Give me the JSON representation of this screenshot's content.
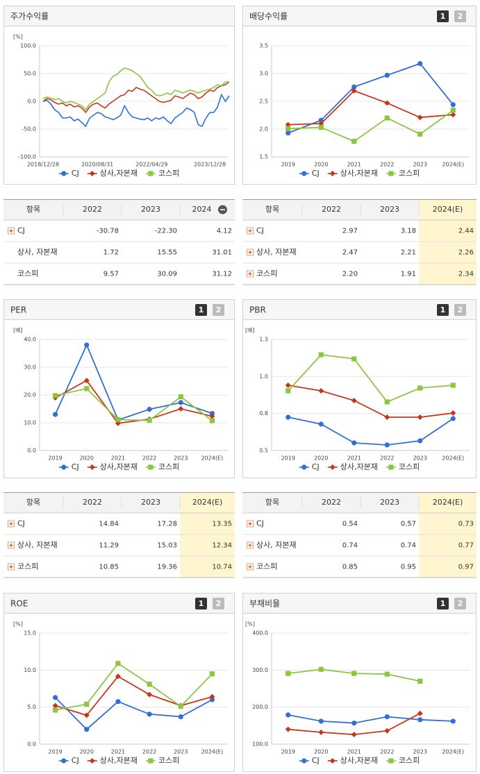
{
  "chart_data": [
    {
      "type": "line",
      "title": "주가수익률",
      "y_label": "[%]",
      "markers": false,
      "categories": [
        "2018/12/28",
        null,
        null,
        null,
        null,
        null,
        null,
        null,
        null,
        null,
        null,
        null,
        null,
        null,
        "2020/08/31",
        null,
        null,
        null,
        null,
        null,
        null,
        null,
        null,
        null,
        null,
        null,
        null,
        null,
        "2022/04/29",
        null,
        null,
        null,
        null,
        null,
        null,
        null,
        null,
        null,
        null,
        null,
        null,
        null,
        null,
        "2023/12/28",
        null,
        null,
        null,
        null,
        null
      ],
      "series": [
        {
          "name": "CJ",
          "color": "#2f6fd6",
          "marker": "circle",
          "values": [
            0,
            2,
            -5,
            -15,
            -20,
            -30,
            -30,
            -28,
            -35,
            -32,
            -38,
            -45,
            -30,
            -25,
            -20,
            -22,
            -28,
            -30,
            -33,
            -30,
            -25,
            -8,
            -20,
            -28,
            -30,
            -32,
            -33,
            -30,
            -35,
            -30,
            -32,
            -28,
            -35,
            -40,
            -30,
            -25,
            -20,
            -12,
            -15,
            -20,
            -42,
            -45,
            -30,
            -20,
            -20,
            -10,
            12,
            0,
            10
          ]
        },
        {
          "name": "상사,자본재",
          "color": "#c8361a",
          "marker": "diamond",
          "values": [
            0,
            5,
            3,
            -2,
            -5,
            -3,
            -8,
            -5,
            -10,
            -8,
            -12,
            -20,
            -10,
            -5,
            -3,
            -8,
            -12,
            -5,
            0,
            5,
            10,
            12,
            20,
            18,
            25,
            22,
            20,
            15,
            10,
            5,
            0,
            -2,
            0,
            2,
            10,
            8,
            5,
            10,
            15,
            12,
            5,
            8,
            15,
            20,
            18,
            25,
            28,
            30,
            35
          ]
        },
        {
          "name": "코스피",
          "color": "#8cc63f",
          "marker": "square",
          "values": [
            5,
            8,
            6,
            3,
            5,
            0,
            -3,
            0,
            -2,
            -5,
            -8,
            -15,
            -5,
            0,
            5,
            10,
            15,
            35,
            45,
            48,
            55,
            60,
            58,
            55,
            50,
            45,
            35,
            25,
            20,
            12,
            10,
            12,
            15,
            12,
            20,
            18,
            15,
            18,
            20,
            18,
            15,
            18,
            20,
            22,
            25,
            30,
            28,
            35,
            35
          ]
        }
      ],
      "ylim": [
        -100,
        100
      ],
      "yticks": [
        {
          "value": -100,
          "label": "-100.0"
        },
        {
          "value": -50,
          "label": "-50.0"
        },
        {
          "value": 0,
          "label": "0.0"
        },
        {
          "value": 50,
          "label": "50.0"
        },
        {
          "value": 100,
          "label": "100.0"
        }
      ],
      "grid": true,
      "legend": "bottom"
    },
    {
      "type": "line",
      "title": "배당수익률",
      "pages": [
        "1",
        "2"
      ],
      "markers": true,
      "categories": [
        "2019",
        "2020",
        "2021",
        "2022",
        "2023",
        "2024(E)"
      ],
      "series": [
        {
          "name": "CJ",
          "color": "#2f6fd6",
          "marker": "circle",
          "values": [
            1.93,
            2.16,
            2.76,
            2.97,
            3.18,
            2.44
          ]
        },
        {
          "name": "상사,자본재",
          "color": "#c8361a",
          "marker": "diamond",
          "values": [
            2.08,
            2.1,
            2.69,
            2.47,
            2.21,
            2.26
          ]
        },
        {
          "name": "코스피",
          "color": "#8cc63f",
          "marker": "square",
          "values": [
            2.01,
            2.03,
            1.78,
            2.2,
            1.91,
            2.34
          ]
        }
      ],
      "ylim": [
        1.5,
        3.5
      ],
      "yticks": [
        1.5,
        {
          "value": 2,
          "label": "2.0"
        },
        2.5,
        {
          "value": 3,
          "label": "3.0"
        },
        3.5
      ],
      "grid": true,
      "legend": "bottom"
    },
    {
      "type": "line",
      "title": "PER",
      "y_label": "[배]",
      "pages": [
        "1",
        "2"
      ],
      "markers": true,
      "categories": [
        "2019",
        "2020",
        "2021",
        "2022",
        "2023",
        "2024(E)"
      ],
      "series": [
        {
          "name": "CJ",
          "color": "#2f6fd6",
          "marker": "circle",
          "values": [
            13.0,
            38.0,
            11.0,
            14.84,
            17.28,
            13.35
          ]
        },
        {
          "name": "상사,자본재",
          "color": "#c8361a",
          "marker": "diamond",
          "values": [
            19.0,
            25.2,
            9.8,
            11.29,
            15.03,
            12.34
          ]
        },
        {
          "name": "코스피",
          "color": "#8cc63f",
          "marker": "square",
          "values": [
            19.8,
            22.3,
            11.1,
            10.85,
            19.36,
            10.74
          ]
        }
      ],
      "ylim": [
        0,
        40
      ],
      "yticks": [
        {
          "value": 0,
          "label": "0.0"
        },
        {
          "value": 10,
          "label": "10.0"
        },
        {
          "value": 20,
          "label": "20.0"
        },
        {
          "value": 30,
          "label": "30.0"
        },
        {
          "value": 40,
          "label": "40.0"
        }
      ],
      "grid": true,
      "legend": "bottom"
    },
    {
      "type": "line",
      "title": "PBR",
      "y_label": "[배]",
      "pages": [
        "1",
        "2"
      ],
      "markers": true,
      "categories": [
        "2019",
        "2020",
        "2021",
        "2022",
        "2023",
        "2024(E)"
      ],
      "series": [
        {
          "name": "CJ",
          "color": "#2f6fd6",
          "marker": "circle",
          "values": [
            0.74,
            0.69,
            0.555,
            0.54,
            0.57,
            0.73
          ]
        },
        {
          "name": "상사,자본재",
          "color": "#c8361a",
          "marker": "diamond",
          "values": [
            0.97,
            0.93,
            0.86,
            0.74,
            0.74,
            0.77
          ]
        },
        {
          "name": "코스피",
          "color": "#8cc63f",
          "marker": "square",
          "values": [
            0.93,
            1.19,
            1.16,
            0.85,
            0.95,
            0.97
          ]
        }
      ],
      "ylim": [
        0.5,
        1.3
      ],
      "yticks": [
        0.5,
        {
          "value": 0.7667,
          "label": "0.8"
        },
        {
          "value": 1.0333,
          "label": "1.0"
        },
        1.3
      ],
      "grid": true,
      "legend": "bottom"
    },
    {
      "type": "line",
      "title": "ROE",
      "y_label": "[%]",
      "pages": [
        "1",
        "2"
      ],
      "markers": true,
      "categories": [
        "2019",
        "2020",
        "2021",
        "2022",
        "2023",
        "2024(E)"
      ],
      "series": [
        {
          "name": "CJ",
          "color": "#2f6fd6",
          "marker": "circle",
          "values": [
            6.3,
            2.0,
            5.75,
            4.05,
            3.7,
            6.0
          ]
        },
        {
          "name": "상사,자본재",
          "color": "#c8361a",
          "marker": "diamond",
          "values": [
            5.2,
            3.9,
            9.15,
            6.7,
            5.2,
            6.4
          ]
        },
        {
          "name": "코스피",
          "color": "#8cc63f",
          "marker": "square",
          "values": [
            4.6,
            5.4,
            10.9,
            8.1,
            5.1,
            9.5
          ]
        }
      ],
      "ylim": [
        0,
        15
      ],
      "yticks": [
        {
          "value": 0,
          "label": "0.0"
        },
        {
          "value": 5,
          "label": "5.0"
        },
        {
          "value": 10,
          "label": "10.0"
        },
        {
          "value": 15,
          "label": "15.0"
        }
      ],
      "grid": true,
      "legend": "bottom"
    },
    {
      "type": "line",
      "title": "부채비율",
      "y_label": "[%]",
      "pages": [
        "1",
        "2"
      ],
      "markers": true,
      "categories": [
        "2019",
        "2020",
        "2021",
        "2022",
        "2023",
        "2024(E)"
      ],
      "series": [
        {
          "name": "CJ",
          "color": "#2f6fd6",
          "marker": "circle",
          "values": [
            179,
            162,
            157,
            174,
            166,
            162
          ]
        },
        {
          "name": "상사,자본재",
          "color": "#c8361a",
          "marker": "diamond",
          "values": [
            140,
            132,
            126,
            136,
            183,
            null
          ]
        },
        {
          "name": "코스피",
          "color": "#8cc63f",
          "marker": "square",
          "values": [
            291,
            302,
            291,
            289,
            270,
            null
          ]
        }
      ],
      "ylim": [
        100,
        400
      ],
      "yticks": [
        {
          "value": 100,
          "label": "100.0"
        },
        {
          "value": 200,
          "label": "200.0"
        },
        {
          "value": 300,
          "label": "300.0"
        },
        {
          "value": 400,
          "label": "400.0"
        }
      ],
      "grid": true,
      "legend": "bottom"
    }
  ],
  "tables": [
    {
      "header": [
        "항목",
        "2022",
        "2023",
        "2024"
      ],
      "highlight_last": false,
      "rows": [
        [
          "CJ",
          "-30.78",
          "-22.30",
          "4.12"
        ],
        [
          "상사, 자본재",
          "1.72",
          "15.55",
          "31.01"
        ],
        [
          "코스피",
          "9.57",
          "30.09",
          "31.12"
        ]
      ]
    },
    {
      "header": [
        "항목",
        "2022",
        "2023",
        "2024(E)"
      ],
      "highlight_last": true,
      "rows": [
        [
          "CJ",
          "2.97",
          "3.18",
          "2.44"
        ],
        [
          "상사, 자본재",
          "2.47",
          "2.21",
          "2.26"
        ],
        [
          "코스피",
          "2.20",
          "1.91",
          "2.34"
        ]
      ]
    },
    {
      "header": [
        "항목",
        "2022",
        "2023",
        "2024(E)"
      ],
      "highlight_last": true,
      "rows": [
        [
          "CJ",
          "14.84",
          "17.28",
          "13.35"
        ],
        [
          "상사, 자본재",
          "11.29",
          "15.03",
          "12.34"
        ],
        [
          "코스피",
          "10.85",
          "19.36",
          "10.74"
        ]
      ]
    },
    {
      "header": [
        "항목",
        "2022",
        "2023",
        "2024(E)"
      ],
      "highlight_last": true,
      "rows": [
        [
          "CJ",
          "0.54",
          "0.57",
          "0.73"
        ],
        [
          "상사, 자본재",
          "0.74",
          "0.74",
          "0.77"
        ],
        [
          "코스피",
          "0.85",
          "0.95",
          "0.97"
        ]
      ]
    }
  ]
}
